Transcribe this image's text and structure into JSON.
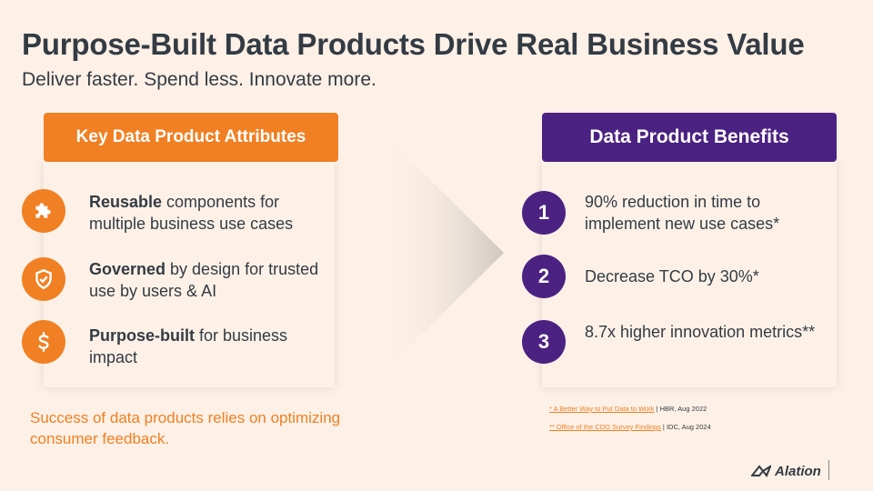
{
  "title": "Purpose-Built Data Products Drive Real Business Value",
  "subtitle": "Deliver faster. Spend less. Innovate more.",
  "attributes": {
    "header": "Key Data Product Attributes",
    "items": [
      {
        "bold": "Reusable",
        "rest": " components for multiple business use cases",
        "icon": "puzzle-icon"
      },
      {
        "bold": "Governed",
        "rest": " by design for trusted use by users & AI",
        "icon": "shield-check-icon"
      },
      {
        "bold": "Purpose-built",
        "rest": " for business impact",
        "icon": "dollar-icon"
      }
    ]
  },
  "benefits": {
    "header": "Data Product Benefits",
    "items": [
      {
        "num": "1",
        "text": "90% reduction in time to implement new use cases*"
      },
      {
        "num": "2",
        "text": "Decrease TCO by 30%*"
      },
      {
        "num": "3",
        "text": "8.7x higher innovation metrics**"
      }
    ]
  },
  "success_note": "Success of data products relies on optimizing consumer feedback.",
  "footnotes": [
    {
      "link": "* A Better Way to Put Data to Work",
      "source": " | HBR, Aug 2022"
    },
    {
      "link": "** Office of the CDO Survey Findings",
      "source": " | IDC, Aug 2024"
    }
  ],
  "logo": {
    "text": "Alation"
  },
  "colors": {
    "orange": "#f08023",
    "purple": "#4b2182",
    "text": "#333b44",
    "background": "#fdf0e6"
  }
}
